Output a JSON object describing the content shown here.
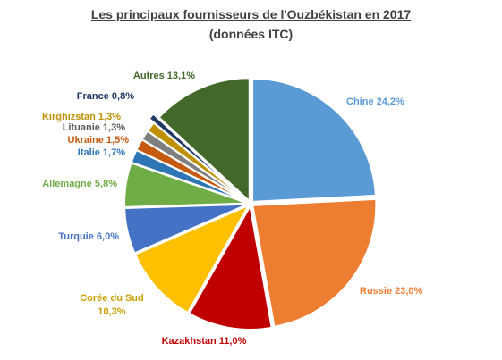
{
  "chart_data": {
    "type": "pie",
    "title": "Les principaux fournisseurs de l'Ouzbékistan en 2017",
    "subtitle": "(données ITC)",
    "slices": [
      {
        "label": "Chine 24,2%",
        "value": 24.2,
        "color": "#5b9bd5"
      },
      {
        "label": "Russie 23,0%",
        "value": 23.0,
        "color": "#ed7d31"
      },
      {
        "label": "Kazakhstan 11,0%",
        "value": 11.0,
        "color": "#c00000"
      },
      {
        "label": "Corée du Sud 10,3%",
        "value": 10.3,
        "color": "#ffc000"
      },
      {
        "label": "Turquie 6,0%",
        "value": 6.0,
        "color": "#4472c4"
      },
      {
        "label": "Allemagne 5,8%",
        "value": 5.8,
        "color": "#70ad47"
      },
      {
        "label": "Italie 1,7%",
        "value": 1.7,
        "color": "#2e75b6"
      },
      {
        "label": "Ukraine 1,5%",
        "value": 1.5,
        "color": "#c55a11"
      },
      {
        "label": "Lituanie 1,3%",
        "value": 1.3,
        "color": "#7f7f7f"
      },
      {
        "label": "Kirghizstan 1,3%",
        "value": 1.3,
        "color": "#bf9000"
      },
      {
        "label": "France 0,8%",
        "value": 0.8,
        "color": "#203864"
      },
      {
        "label": "Autres 13,1%",
        "value": 13.1,
        "color": "#43682b"
      }
    ]
  }
}
